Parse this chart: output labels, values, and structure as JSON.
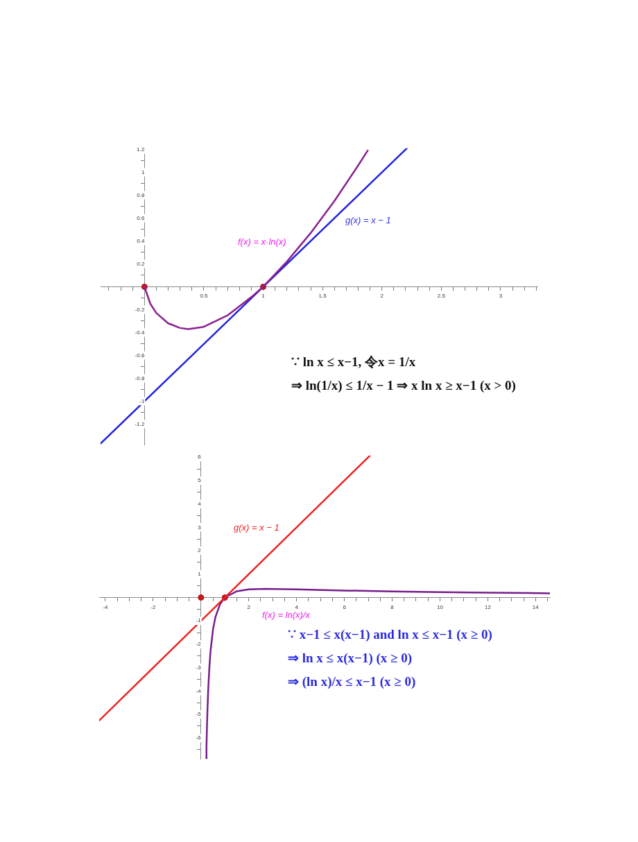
{
  "chart_data": [
    {
      "type": "line",
      "xlim": [
        -0.37,
        3.31
      ],
      "ylim": [
        -1.38,
        1.21
      ],
      "xticks": [
        {
          "value": -0.3,
          "label": null
        },
        {
          "value": -0.2,
          "label": null
        },
        {
          "value": -0.1,
          "label": null
        },
        {
          "value": 0.1,
          "label": null
        },
        {
          "value": 0.2,
          "label": null
        },
        {
          "value": 0.3,
          "label": null
        },
        {
          "value": 0.4,
          "label": null
        },
        {
          "value": 0.5,
          "label": "0.5"
        },
        {
          "value": 0.6,
          "label": null
        },
        {
          "value": 0.7,
          "label": null
        },
        {
          "value": 0.8,
          "label": null
        },
        {
          "value": 0.9,
          "label": null
        },
        1,
        {
          "value": 1.1,
          "label": null
        },
        {
          "value": 1.2,
          "label": null
        },
        {
          "value": 1.3,
          "label": null
        },
        {
          "value": 1.4,
          "label": null
        },
        {
          "value": 1.5,
          "label": "1.5"
        },
        {
          "value": 1.6,
          "label": null
        },
        {
          "value": 1.7,
          "label": null
        },
        {
          "value": 1.8,
          "label": null
        },
        {
          "value": 1.9,
          "label": null
        },
        2,
        {
          "value": 2.1,
          "label": null
        },
        {
          "value": 2.2,
          "label": null
        },
        {
          "value": 2.3,
          "label": null
        },
        {
          "value": 2.4,
          "label": null
        },
        {
          "value": 2.5,
          "label": "2.5"
        },
        {
          "value": 2.6,
          "label": null
        },
        {
          "value": 2.7,
          "label": null
        },
        {
          "value": 2.8,
          "label": null
        },
        {
          "value": 2.9,
          "label": null
        },
        3,
        {
          "value": 3.1,
          "label": null
        },
        {
          "value": 3.2,
          "label": null
        },
        {
          "value": 3.3,
          "label": null
        }
      ],
      "yticks": [
        -1.2,
        {
          "value": -1.1,
          "label": null
        },
        -1,
        {
          "value": -0.9,
          "label": null
        },
        -0.8,
        {
          "value": -0.7,
          "label": null
        },
        -0.6,
        {
          "value": -0.5,
          "label": null
        },
        -0.4,
        {
          "value": -0.3,
          "label": null
        },
        -0.2,
        {
          "value": -0.1,
          "label": null
        },
        {
          "value": 0.1,
          "label": null
        },
        0.2,
        {
          "value": 0.3,
          "label": null
        },
        0.4,
        {
          "value": 0.5,
          "label": null
        },
        0.6,
        {
          "value": 0.7,
          "label": null
        },
        0.8,
        {
          "value": 0.9,
          "label": null
        },
        1,
        {
          "value": 1.1,
          "label": null
        },
        1.2
      ],
      "grid": false,
      "legend": false,
      "marker": "none",
      "line_style": "solid",
      "series": [
        {
          "color": "#8b1f8f",
          "x": [
            0,
            0.05,
            0.1,
            0.2,
            0.3,
            0.37,
            0.5,
            0.7,
            0.9,
            1,
            1.2,
            1.4,
            1.6,
            1.8,
            1.88
          ],
          "values": [
            0,
            -0.15,
            -0.23,
            -0.32,
            -0.36,
            -0.37,
            -0.35,
            -0.25,
            -0.09,
            0,
            0.22,
            0.47,
            0.75,
            1.06,
            1.19
          ]
        },
        {
          "color": "#2323e0",
          "x": [
            -0.37,
            2.21
          ],
          "values": [
            -1.37,
            1.21
          ]
        },
        {
          "type": "scatter",
          "marker": "circle",
          "color": "#dd1111",
          "x": [
            0,
            1
          ],
          "values": [
            0,
            0
          ]
        }
      ],
      "annotations": [
        "f(x) = x·ln(x)",
        "g(x) = x − 1",
        "∵ ln x ≤ x−1, 令x = 1/x",
        "⇒ ln(1/x) ≤ 1/x − 1 ⇒ x ln x ≥ x−1 (x > 0)"
      ]
    },
    {
      "type": "line",
      "xlim": [
        -4.26,
        14.6
      ],
      "ylim": [
        -6.9,
        6.07
      ],
      "xticks": [
        {
          "value": -4,
          "label": "-4"
        },
        {
          "value": -3.5,
          "label": null
        },
        {
          "value": -3,
          "label": null
        },
        {
          "value": -2.5,
          "label": null
        },
        {
          "value": -2,
          "label": "-2"
        },
        {
          "value": -1.5,
          "label": null
        },
        {
          "value": -1,
          "label": null
        },
        {
          "value": -0.5,
          "label": null
        },
        {
          "value": 0.5,
          "label": null
        },
        {
          "value": 1,
          "label": null
        },
        {
          "value": 1.5,
          "label": null
        },
        2,
        {
          "value": 2.5,
          "label": null
        },
        {
          "value": 3,
          "label": null
        },
        {
          "value": 3.5,
          "label": null
        },
        4,
        {
          "value": 4.5,
          "label": null
        },
        {
          "value": 5,
          "label": null
        },
        {
          "value": 5.5,
          "label": null
        },
        6,
        {
          "value": 6.5,
          "label": null
        },
        {
          "value": 7,
          "label": null
        },
        {
          "value": 7.5,
          "label": null
        },
        8,
        {
          "value": 8.5,
          "label": null
        },
        {
          "value": 9,
          "label": null
        },
        {
          "value": 9.5,
          "label": null
        },
        10,
        {
          "value": 10.5,
          "label": null
        },
        {
          "value": 11,
          "label": null
        },
        {
          "value": 11.5,
          "label": null
        },
        12,
        {
          "value": 12.5,
          "label": null
        },
        {
          "value": 13,
          "label": null
        },
        {
          "value": 13.5,
          "label": null
        },
        14,
        {
          "value": 14.5,
          "label": null
        }
      ],
      "yticks": [
        {
          "value": -6.5,
          "label": null
        },
        -6,
        {
          "value": -5.5,
          "label": null
        },
        -5,
        {
          "value": -4.5,
          "label": null
        },
        -4,
        {
          "value": -3.5,
          "label": null
        },
        -3,
        {
          "value": -2.5,
          "label": null
        },
        -2,
        {
          "value": -1.5,
          "label": null
        },
        -1,
        {
          "value": -0.5,
          "label": null
        },
        {
          "value": 0.5,
          "label": null
        },
        1,
        {
          "value": 1.5,
          "label": null
        },
        2,
        {
          "value": 2.5,
          "label": null
        },
        3,
        {
          "value": 3.5,
          "label": null
        },
        4,
        {
          "value": 4.5,
          "label": null
        },
        5,
        {
          "value": 5.5,
          "label": null
        },
        6
      ],
      "grid": false,
      "legend": false,
      "marker": "none",
      "line_style": "solid",
      "series": [
        {
          "color": "#ee2222",
          "x": [
            -4.26,
            7.07
          ],
          "values": [
            -5.26,
            6.07
          ]
        },
        {
          "color": "#761c8c",
          "x": [
            0.22,
            0.23,
            0.25,
            0.27,
            0.3,
            0.35,
            0.4,
            0.5,
            0.6,
            0.8,
            1,
            1.5,
            2,
            2.7,
            4,
            6,
            8,
            10,
            12,
            14.6
          ],
          "values": [
            -6.88,
            -6.39,
            -5.55,
            -4.85,
            -4.01,
            -3,
            -2.29,
            -1.39,
            -0.85,
            -0.28,
            0,
            0.27,
            0.35,
            0.37,
            0.35,
            0.3,
            0.26,
            0.23,
            0.21,
            0.18
          ]
        },
        {
          "type": "scatter",
          "marker": "circle",
          "color": "#dd1111",
          "x": [
            0,
            1
          ],
          "values": [
            0,
            0
          ]
        }
      ],
      "annotations": [
        "g(x) = x − 1",
        "f(x) = ln(x)/x",
        "∵ x−1 ≤ x(x−1) and ln x ≤ x−1 (x ≥ 0)",
        "⇒ ln x ≤ x(x−1) (x ≥ 0)",
        "⇒ (ln x)/x ≤ x−1 (x ≥ 0)"
      ]
    }
  ]
}
